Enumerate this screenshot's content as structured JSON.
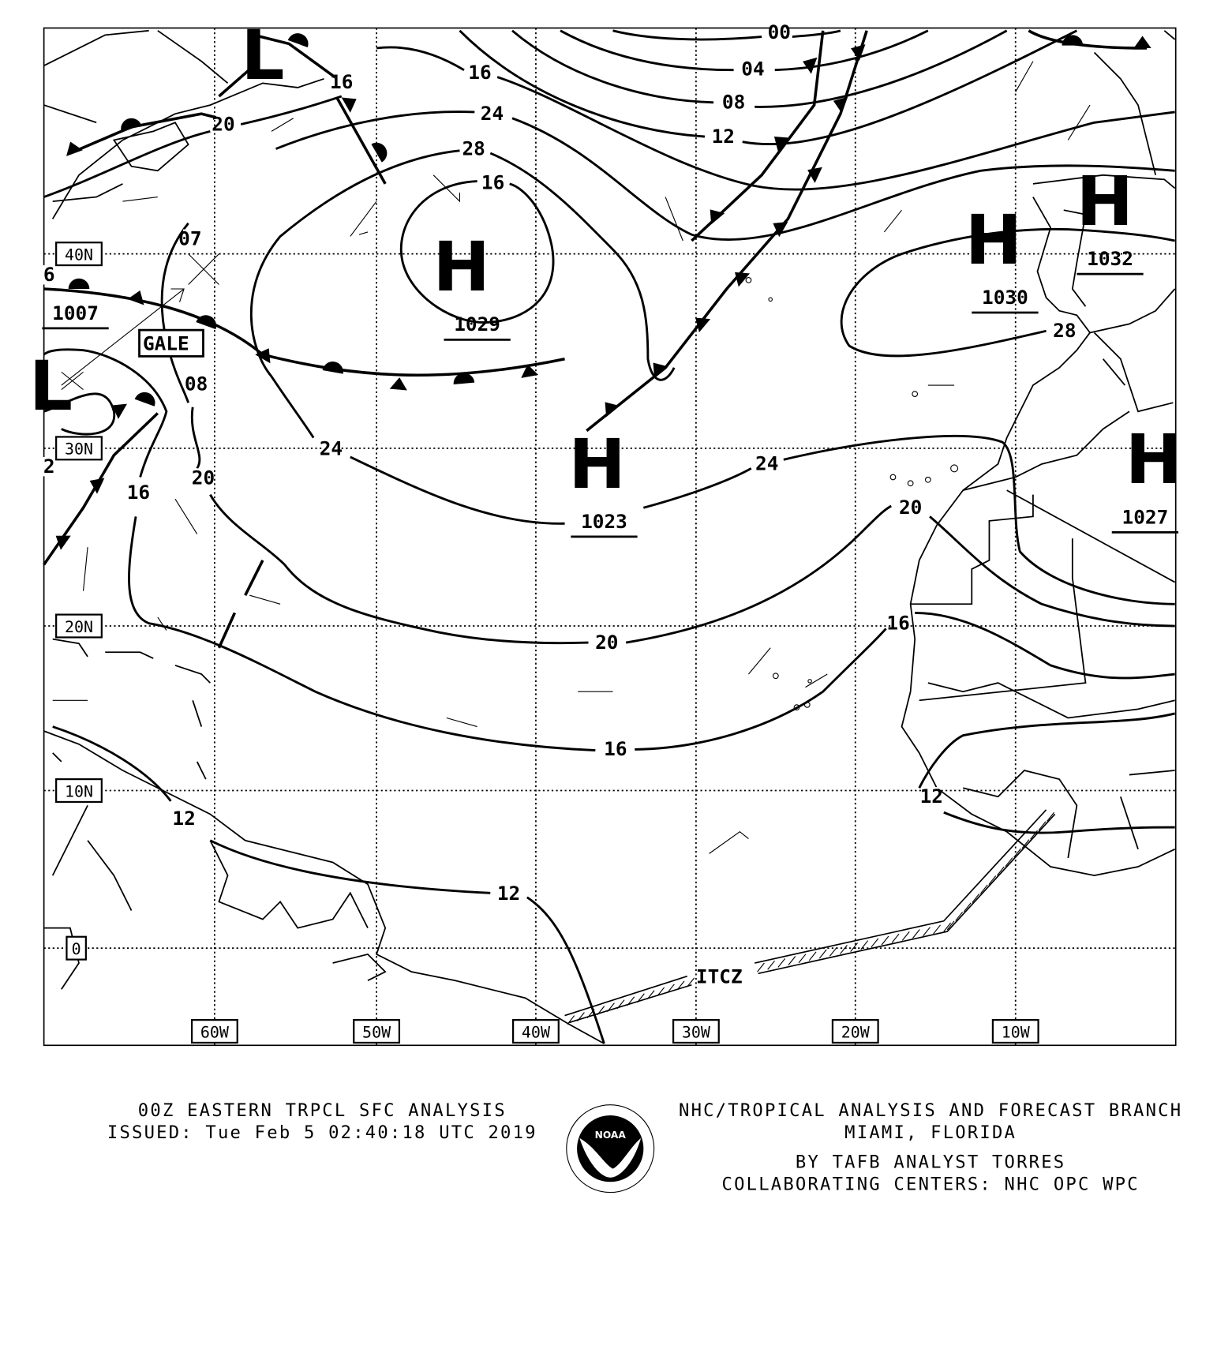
{
  "map": {
    "title": "00Z EASTERN TRPCL SFC ANALYSIS",
    "issued": "ISSUED: Tue Feb 5 02:40:18 UTC 2019",
    "agency": "NHC/TROPICAL ANALYSIS AND FORECAST BRANCH",
    "location": "MIAMI,  FLORIDA",
    "analyst": "BY TAFB ANALYST  TORRES",
    "collaborating": "COLLABORATING CENTERS: NHC OPC WPC",
    "logo_text": "NOAA",
    "latitude_labels": [
      "40N",
      "30N",
      "20N",
      "10N",
      "0"
    ],
    "longitude_labels": [
      "60W",
      "50W",
      "40W",
      "30W",
      "20W",
      "10W"
    ],
    "pressure_centers": [
      {
        "type": "H",
        "value": "1029"
      },
      {
        "type": "H",
        "value": "1023"
      },
      {
        "type": "H",
        "value": "1030"
      },
      {
        "type": "H",
        "value": "1032"
      },
      {
        "type": "H",
        "value": "1027"
      },
      {
        "type": "L",
        "value": "1007"
      },
      {
        "type": "L",
        "value": ""
      }
    ],
    "isobar_labels": [
      "00",
      "04",
      "08",
      "12",
      "16",
      "20",
      "24",
      "28",
      "16",
      "16",
      "07",
      "08",
      "20",
      "16",
      "24",
      "24",
      "20",
      "20",
      "16",
      "16",
      "12",
      "12",
      "12",
      "28",
      "6",
      "2"
    ],
    "annotations": {
      "gale": "GALE",
      "itcz": "ITCZ"
    }
  }
}
